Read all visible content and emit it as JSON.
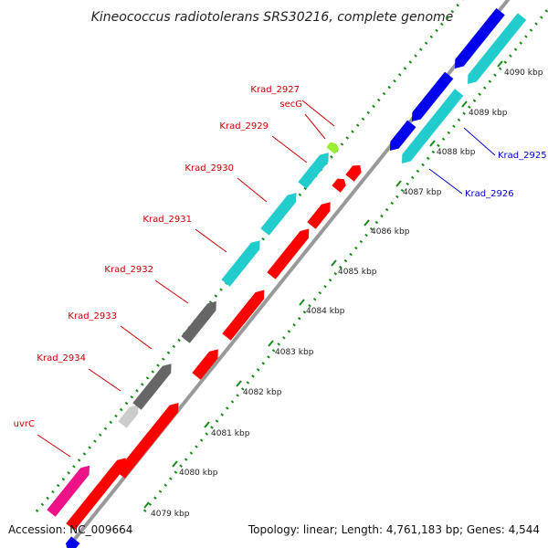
{
  "title": "Kineococcus radiotolerans SRS30216, complete genome",
  "accession": "Accession: NC_009664",
  "topology": "Topology: linear; Length: 4,761,183 bp; Genes: 4,544",
  "colors": {
    "background": "#ffffff",
    "backbone": "#999999",
    "dots": "#1a8a1a",
    "forward_label": "#cc0000",
    "reverse_label": "#0000cc",
    "red_gene": "#ff0000",
    "cyan_gene": "#22cccc",
    "magenta_gene": "#ee1188",
    "dark_gray_gene": "#666666",
    "light_gray_gene": "#cccccc",
    "blue_gene": "#0000ee",
    "lime_gene": "#99ee33"
  },
  "kbp_ticks": [
    "4079 kbp",
    "4080 kbp",
    "4081 kbp",
    "4082 kbp",
    "4083 kbp",
    "4084 kbp",
    "4085 kbp",
    "4086 kbp",
    "4087 kbp",
    "4088 kbp",
    "4089 kbp",
    "4090 kbp"
  ],
  "forward_labels": [
    "Krad_2927",
    "secG",
    "Krad_2929",
    "Krad_2930",
    "Krad_2931",
    "Krad_2932",
    "Krad_2933",
    "Krad_2934",
    "uvrC"
  ],
  "reverse_labels": [
    "Krad_2925",
    "Krad_2926"
  ]
}
